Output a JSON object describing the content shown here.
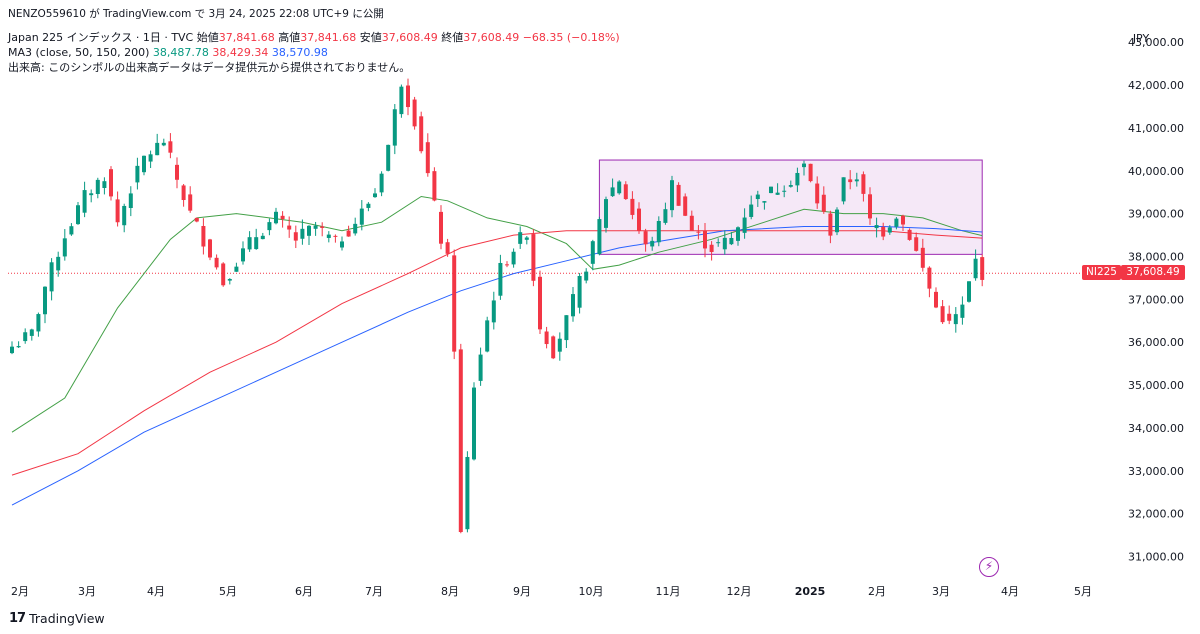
{
  "header": {
    "publisher": "NENZO559610 が TradingView.com で 3月 24, 2025 22:08 UTC+9 に公開",
    "symbol_name": "Japan 225 インデックス · 1日 · TVC",
    "open_label": "始値",
    "open_value": "37,841.68",
    "high_label": "高値",
    "high_value": "37,841.68",
    "low_label": "安値",
    "low_value": "37,608.49",
    "close_label": "終値",
    "close_value": "37,608.49",
    "change": "−68.35 (−0.18%)",
    "ma_label": "MA3 (close, 50, 150, 200)",
    "ma50_value": "38,487.78",
    "ma150_value": "38,429.34",
    "ma200_value": "38,570.98",
    "volume_note": "出来高: このシンボルの出来高データはデータ提供元から提供されておりません。"
  },
  "currency": "JPY",
  "price_tag": {
    "symbol": "NI225",
    "value": "37,608.49"
  },
  "footer": {
    "brand": "TradingView",
    "mark": "17"
  },
  "flash_icon": "lightning-icon",
  "colors": {
    "up": "#089981",
    "down": "#f23645",
    "ma50": "#43a047",
    "ma150": "#f23645",
    "ma200": "#2962ff",
    "box_fill": "#e1bee7",
    "box_stroke": "#9c27b0"
  },
  "chart_data": {
    "type": "candlestick",
    "title": "Japan 225 インデックス · 1日 · TVC",
    "ylim": [
      30500,
      43300
    ],
    "y_ticks": [
      31000,
      32000,
      33000,
      34000,
      35000,
      36000,
      37000,
      38000,
      39000,
      40000,
      41000,
      42000,
      43000
    ],
    "y_tick_labels": [
      "31,000.00",
      "32,000.00",
      "33,000.00",
      "34,000.00",
      "35,000.00",
      "36,000.00",
      "37,000.00",
      "38,000.00",
      "39,000.00",
      "40,000.00",
      "41,000.00",
      "42,000.00",
      "43,000.00"
    ],
    "x_tick_labels": [
      "2月",
      "3月",
      "4月",
      "5月",
      "6月",
      "7月",
      "8月",
      "9月",
      "10月",
      "11月",
      "12月",
      "2025",
      "2月",
      "3月",
      "4月",
      "5月"
    ],
    "last_price": 37608.49,
    "close_path": [
      {
        "x": 0,
        "y": 35900
      },
      {
        "x": 3,
        "y": 36200
      },
      {
        "x": 5,
        "y": 37300
      },
      {
        "x": 8,
        "y": 38500
      },
      {
        "x": 11,
        "y": 39400
      },
      {
        "x": 14,
        "y": 39900
      },
      {
        "x": 16,
        "y": 38800
      },
      {
        "x": 18,
        "y": 39600
      },
      {
        "x": 20,
        "y": 40300
      },
      {
        "x": 23,
        "y": 40700
      },
      {
        "x": 25,
        "y": 39800
      },
      {
        "x": 27,
        "y": 39000
      },
      {
        "x": 30,
        "y": 38100
      },
      {
        "x": 32,
        "y": 37400
      },
      {
        "x": 34,
        "y": 37900
      },
      {
        "x": 37,
        "y": 38500
      },
      {
        "x": 40,
        "y": 38900
      },
      {
        "x": 43,
        "y": 38400
      },
      {
        "x": 46,
        "y": 38700
      },
      {
        "x": 49,
        "y": 38300
      },
      {
        "x": 52,
        "y": 38800
      },
      {
        "x": 55,
        "y": 39500
      },
      {
        "x": 57,
        "y": 40600
      },
      {
        "x": 59,
        "y": 42100
      },
      {
        "x": 61,
        "y": 41200
      },
      {
        "x": 63,
        "y": 39900
      },
      {
        "x": 65,
        "y": 38400
      },
      {
        "x": 66,
        "y": 37900
      },
      {
        "x": 67,
        "y": 35900
      },
      {
        "x": 68,
        "y": 31500
      },
      {
        "x": 70,
        "y": 35000
      },
      {
        "x": 72,
        "y": 36500
      },
      {
        "x": 74,
        "y": 37700
      },
      {
        "x": 76,
        "y": 38200
      },
      {
        "x": 78,
        "y": 38600
      },
      {
        "x": 80,
        "y": 36400
      },
      {
        "x": 82,
        "y": 35800
      },
      {
        "x": 84,
        "y": 36500
      },
      {
        "x": 86,
        "y": 37400
      },
      {
        "x": 88,
        "y": 38200
      },
      {
        "x": 90,
        "y": 39400
      },
      {
        "x": 92,
        "y": 39800
      },
      {
        "x": 94,
        "y": 39000
      },
      {
        "x": 96,
        "y": 38200
      },
      {
        "x": 98,
        "y": 38700
      },
      {
        "x": 100,
        "y": 39700
      },
      {
        "x": 103,
        "y": 38600
      },
      {
        "x": 106,
        "y": 38200
      },
      {
        "x": 109,
        "y": 38400
      },
      {
        "x": 112,
        "y": 39300
      },
      {
        "x": 115,
        "y": 39500
      },
      {
        "x": 118,
        "y": 39800
      },
      {
        "x": 120,
        "y": 40100
      },
      {
        "x": 122,
        "y": 39300
      },
      {
        "x": 124,
        "y": 38600
      },
      {
        "x": 126,
        "y": 39700
      },
      {
        "x": 128,
        "y": 39900
      },
      {
        "x": 130,
        "y": 38800
      },
      {
        "x": 132,
        "y": 38600
      },
      {
        "x": 134,
        "y": 39000
      },
      {
        "x": 136,
        "y": 38500
      },
      {
        "x": 138,
        "y": 37700
      },
      {
        "x": 140,
        "y": 36800
      },
      {
        "x": 142,
        "y": 36400
      },
      {
        "x": 144,
        "y": 36800
      },
      {
        "x": 146,
        "y": 37900
      },
      {
        "x": 147,
        "y": 37608
      }
    ],
    "ma_series": [
      {
        "name": "MA 50",
        "color": "#43a047",
        "points": [
          {
            "x": 0,
            "y": 33900
          },
          {
            "x": 8,
            "y": 34700
          },
          {
            "x": 16,
            "y": 36800
          },
          {
            "x": 24,
            "y": 38400
          },
          {
            "x": 28,
            "y": 38900
          },
          {
            "x": 34,
            "y": 39000
          },
          {
            "x": 44,
            "y": 38800
          },
          {
            "x": 50,
            "y": 38600
          },
          {
            "x": 56,
            "y": 38800
          },
          {
            "x": 62,
            "y": 39400
          },
          {
            "x": 66,
            "y": 39300
          },
          {
            "x": 72,
            "y": 38900
          },
          {
            "x": 78,
            "y": 38700
          },
          {
            "x": 84,
            "y": 38300
          },
          {
            "x": 88,
            "y": 37700
          },
          {
            "x": 92,
            "y": 37800
          },
          {
            "x": 98,
            "y": 38100
          },
          {
            "x": 106,
            "y": 38400
          },
          {
            "x": 114,
            "y": 38800
          },
          {
            "x": 120,
            "y": 39100
          },
          {
            "x": 126,
            "y": 39000
          },
          {
            "x": 132,
            "y": 39000
          },
          {
            "x": 138,
            "y": 38900
          },
          {
            "x": 144,
            "y": 38600
          },
          {
            "x": 147,
            "y": 38488
          }
        ]
      },
      {
        "name": "MA 150",
        "color": "#f23645",
        "points": [
          {
            "x": 0,
            "y": 32900
          },
          {
            "x": 10,
            "y": 33400
          },
          {
            "x": 20,
            "y": 34400
          },
          {
            "x": 30,
            "y": 35300
          },
          {
            "x": 40,
            "y": 36000
          },
          {
            "x": 50,
            "y": 36900
          },
          {
            "x": 60,
            "y": 37600
          },
          {
            "x": 68,
            "y": 38200
          },
          {
            "x": 76,
            "y": 38500
          },
          {
            "x": 84,
            "y": 38600
          },
          {
            "x": 96,
            "y": 38600
          },
          {
            "x": 108,
            "y": 38600
          },
          {
            "x": 120,
            "y": 38600
          },
          {
            "x": 132,
            "y": 38600
          },
          {
            "x": 140,
            "y": 38500
          },
          {
            "x": 147,
            "y": 38429
          }
        ]
      },
      {
        "name": "MA 200",
        "color": "#2962ff",
        "points": [
          {
            "x": 0,
            "y": 32200
          },
          {
            "x": 10,
            "y": 33000
          },
          {
            "x": 20,
            "y": 33900
          },
          {
            "x": 30,
            "y": 34600
          },
          {
            "x": 40,
            "y": 35300
          },
          {
            "x": 50,
            "y": 36000
          },
          {
            "x": 60,
            "y": 36700
          },
          {
            "x": 68,
            "y": 37200
          },
          {
            "x": 76,
            "y": 37600
          },
          {
            "x": 84,
            "y": 37900
          },
          {
            "x": 92,
            "y": 38200
          },
          {
            "x": 100,
            "y": 38400
          },
          {
            "x": 108,
            "y": 38600
          },
          {
            "x": 120,
            "y": 38700
          },
          {
            "x": 132,
            "y": 38700
          },
          {
            "x": 140,
            "y": 38650
          },
          {
            "x": 147,
            "y": 38571
          }
        ]
      }
    ],
    "range_box": {
      "x_start": 89,
      "x_end": 147,
      "y_low": 38050,
      "y_high": 40250
    },
    "grid": false
  }
}
